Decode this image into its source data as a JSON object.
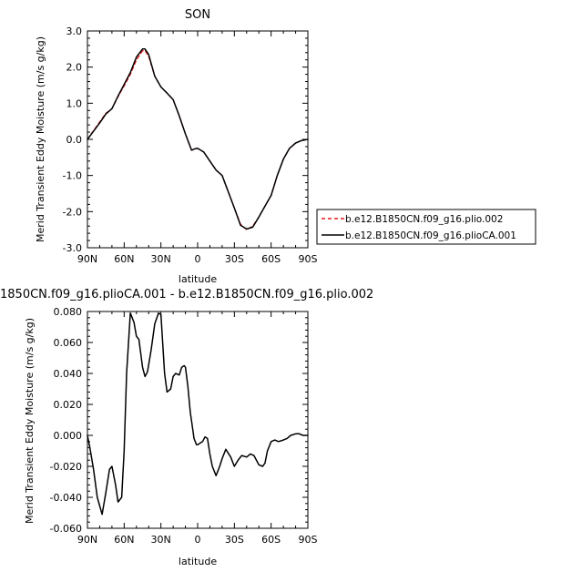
{
  "chart_data": [
    {
      "type": "line",
      "title": "SON",
      "xlabel": "latitude",
      "ylabel": "Merid Transient Eddy Moisture  (m/s g/kg)",
      "x_tick_values": [
        90,
        60,
        30,
        0,
        -30,
        -60,
        -90
      ],
      "x_tick_labels": [
        "90N",
        "60N",
        "30N",
        "0",
        "30S",
        "60S",
        "90S"
      ],
      "xlim": [
        90,
        -90
      ],
      "y_tick_values": [
        3.0,
        2.0,
        1.0,
        0.0,
        -1.0,
        -2.0,
        -3.0
      ],
      "y_tick_labels": [
        "3.0",
        "2.0",
        "1.0",
        "0.0",
        "-1.0",
        "-2.0",
        "-3.0"
      ],
      "ylim": [
        -3.0,
        3.0
      ],
      "legend": "outside-right",
      "x": [
        90,
        80,
        75,
        70,
        65,
        60,
        55,
        50,
        45,
        43,
        40,
        35,
        30,
        25,
        20,
        15,
        10,
        5,
        2,
        0,
        -5,
        -10,
        -15,
        -20,
        -25,
        -30,
        -35,
        -40,
        -45,
        -50,
        -55,
        -60,
        -65,
        -70,
        -75,
        -80,
        -85,
        -90
      ],
      "series": [
        {
          "name": "b.e12.B1850CN.f09_g16.plio.002",
          "color": "#e8191c",
          "dash": true,
          "values": [
            0.0,
            0.48,
            0.72,
            0.85,
            1.18,
            1.48,
            1.8,
            2.2,
            2.45,
            2.46,
            2.3,
            1.75,
            1.45,
            1.28,
            1.1,
            0.65,
            0.15,
            -0.3,
            -0.26,
            -0.25,
            -0.35,
            -0.6,
            -0.85,
            -1.0,
            -1.45,
            -1.9,
            -2.35,
            -2.5,
            -2.4,
            -2.15,
            -1.85,
            -1.55,
            -1.0,
            -0.55,
            -0.25,
            -0.1,
            -0.03,
            0.0
          ]
        },
        {
          "name": "b.e12.B1850CN.f09_g16.plioCA.001",
          "color": "#000000",
          "dash": false,
          "values": [
            0.0,
            0.45,
            0.7,
            0.85,
            1.2,
            1.52,
            1.85,
            2.28,
            2.5,
            2.5,
            2.35,
            1.75,
            1.45,
            1.28,
            1.1,
            0.65,
            0.15,
            -0.3,
            -0.26,
            -0.25,
            -0.35,
            -0.6,
            -0.85,
            -1.0,
            -1.45,
            -1.9,
            -2.38,
            -2.48,
            -2.43,
            -2.15,
            -1.85,
            -1.55,
            -1.0,
            -0.55,
            -0.25,
            -0.1,
            -0.03,
            0.0
          ]
        }
      ]
    },
    {
      "type": "line",
      "title": "1850CN.f09_g16.plioCA.001 - b.e12.B1850CN.f09_g16.plio.002",
      "xlabel": "latitude",
      "ylabel": "Merid Transient Eddy Moisture  (m/s g/kg)",
      "x_tick_values": [
        90,
        60,
        30,
        0,
        -30,
        -60,
        -90
      ],
      "x_tick_labels": [
        "90N",
        "60N",
        "30N",
        "0",
        "30S",
        "60S",
        "90S"
      ],
      "xlim": [
        90,
        -90
      ],
      "y_tick_values": [
        0.08,
        0.06,
        0.04,
        0.02,
        0.0,
        -0.02,
        -0.04,
        -0.06
      ],
      "y_tick_labels": [
        "0.080",
        "0.060",
        "0.040",
        "0.020",
        "0.000",
        "-0.020",
        "-0.040",
        "-0.060"
      ],
      "ylim": [
        -0.06,
        0.08
      ],
      "x": [
        90,
        88,
        85,
        82,
        78,
        75,
        72,
        70,
        67,
        65,
        62,
        60,
        58,
        55,
        52,
        50,
        48,
        45,
        43,
        41,
        38,
        35,
        32,
        30,
        27,
        25,
        22,
        20,
        18,
        15,
        13,
        11,
        10,
        8,
        6,
        4,
        3,
        1,
        0,
        -2,
        -4,
        -6,
        -8,
        -10,
        -12,
        -15,
        -18,
        -20,
        -23,
        -27,
        -30,
        -33,
        -36,
        -40,
        -43,
        -46,
        -50,
        -53,
        -55,
        -57,
        -60,
        -63,
        -66,
        -70,
        -73,
        -76,
        -80,
        -83,
        -86,
        -88,
        -90
      ],
      "series": [
        {
          "name": "",
          "color": "#000000",
          "dash": false,
          "values": [
            0.0,
            -0.008,
            -0.022,
            -0.04,
            -0.051,
            -0.037,
            -0.022,
            -0.02,
            -0.032,
            -0.043,
            -0.04,
            -0.01,
            0.04,
            0.079,
            0.073,
            0.064,
            0.062,
            0.044,
            0.038,
            0.041,
            0.055,
            0.072,
            0.079,
            0.078,
            0.04,
            0.028,
            0.03,
            0.038,
            0.04,
            0.039,
            0.044,
            0.045,
            0.044,
            0.032,
            0.015,
            0.004,
            -0.002,
            -0.006,
            -0.006,
            -0.005,
            -0.004,
            -0.001,
            -0.002,
            -0.012,
            -0.02,
            -0.026,
            -0.02,
            -0.015,
            -0.009,
            -0.014,
            -0.02,
            -0.016,
            -0.013,
            -0.014,
            -0.012,
            -0.013,
            -0.019,
            -0.02,
            -0.018,
            -0.01,
            -0.004,
            -0.003,
            -0.004,
            -0.003,
            -0.002,
            0.0,
            0.001,
            0.001,
            0.0,
            0.0,
            0.0
          ]
        }
      ]
    }
  ]
}
